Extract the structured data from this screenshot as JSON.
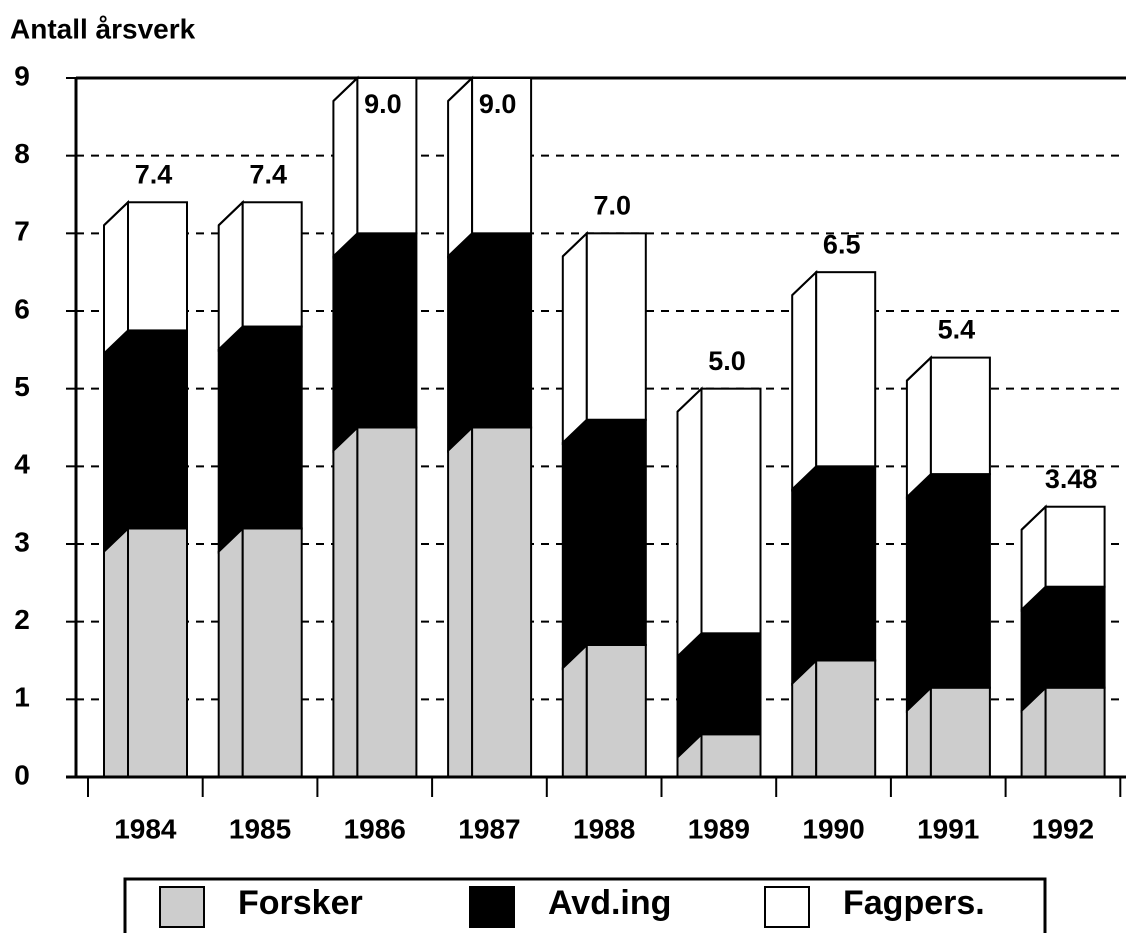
{
  "chart_data": {
    "type": "stacked-bar-3d",
    "title": "Antall årsverk",
    "categories": [
      "1984",
      "1985",
      "1986",
      "1987",
      "1988",
      "1989",
      "1990",
      "1991",
      "1992"
    ],
    "series": [
      {
        "name": "Forsker",
        "color": "#cdcdcd",
        "values": [
          3.2,
          3.2,
          4.5,
          4.5,
          1.7,
          0.55,
          1.5,
          1.15,
          1.15
        ]
      },
      {
        "name": "Avd.ing",
        "color": "#000000",
        "values": [
          2.55,
          2.6,
          2.5,
          2.5,
          2.9,
          1.3,
          2.5,
          2.75,
          1.3
        ]
      },
      {
        "name": "Fagpers.",
        "color": "#ffffff",
        "values": [
          1.65,
          1.6,
          2.0,
          2.0,
          2.4,
          3.15,
          2.5,
          1.5,
          1.03
        ]
      }
    ],
    "totals": [
      7.4,
      7.4,
      9,
      9,
      7,
      5,
      6.5,
      5.4,
      3.48
    ],
    "total_labels": [
      "7.4",
      "7.4",
      "9.0",
      "9.0",
      "7.0",
      "5.0",
      "6.5",
      "5.4",
      "3.48"
    ],
    "ylim": [
      0,
      9
    ],
    "yticks": [
      0,
      1,
      2,
      3,
      4,
      5,
      6,
      7,
      8,
      9
    ],
    "grid": true
  }
}
